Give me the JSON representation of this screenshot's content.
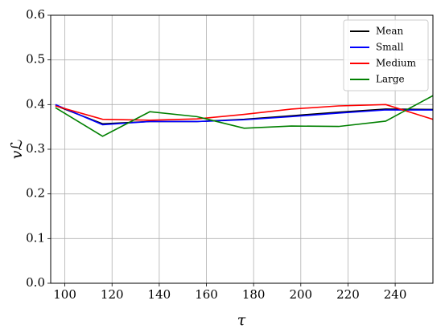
{
  "chart_data": {
    "type": "line",
    "xlabel": "τ",
    "ylabel": "𝑣ℒ",
    "x": [
      96,
      116,
      136,
      156,
      176,
      196,
      216,
      236,
      256
    ],
    "series": [
      {
        "name": "Mean",
        "color": "#000000",
        "values": [
          0.398,
          0.357,
          0.362,
          0.362,
          0.367,
          0.375,
          0.383,
          0.39,
          0.389
        ]
      },
      {
        "name": "Small",
        "color": "#0000ff",
        "values": [
          0.4,
          0.355,
          0.362,
          0.362,
          0.366,
          0.373,
          0.381,
          0.388,
          0.388
        ]
      },
      {
        "name": "Medium",
        "color": "#ff0000",
        "values": [
          0.397,
          0.367,
          0.365,
          0.368,
          0.378,
          0.39,
          0.397,
          0.4,
          0.367
        ]
      },
      {
        "name": "Large",
        "color": "#008000",
        "values": [
          0.393,
          0.329,
          0.384,
          0.373,
          0.347,
          0.352,
          0.351,
          0.363,
          0.42
        ]
      }
    ],
    "xlim": [
      94,
      256
    ],
    "ylim": [
      0,
      0.6
    ],
    "xticks": [
      100,
      120,
      140,
      160,
      180,
      200,
      220,
      240
    ],
    "yticks": [
      {
        "value": 0,
        "label": "0.0"
      },
      0.1,
      0.2,
      0.3,
      0.4,
      0.5,
      0.6
    ],
    "grid": true,
    "legend": "upper right"
  }
}
